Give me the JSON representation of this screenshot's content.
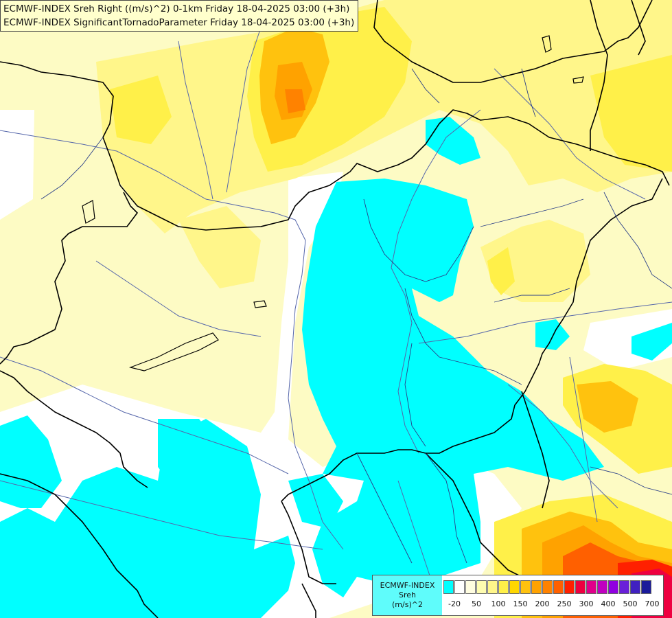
{
  "titles": [
    "ECMWF-INDEX Sreh Right ((m/s)^2) 0-1km Friday 18-04-2025 03:00 (+3h)",
    "ECMWF-INDEX SignificantTornadoParameter Friday 18-04-2025 03:00 (+3h)"
  ],
  "legend": {
    "source": "ECMWF-INDEX",
    "parameter": "Sreh",
    "unit": "(m/s)^2",
    "tick_labels": [
      "-20",
      "50",
      "100",
      "150",
      "200",
      "250",
      "300",
      "400",
      "500",
      "700"
    ],
    "colors": [
      "#00ffff",
      "#ffffff",
      "#fffde0",
      "#fefcb0",
      "#fff68a",
      "#fff049",
      "#ffd700",
      "#ffc20e",
      "#ffa200",
      "#ff8200",
      "#ff6000",
      "#ff2000",
      "#ee0040",
      "#e0008a",
      "#c000c0",
      "#9000e0",
      "#6a1fd9",
      "#4020c0",
      "#1a1a9a"
    ]
  },
  "colors": {
    "background": "#fdfbc4",
    "cyan": "#00ffff",
    "border": "#000000",
    "river": "#5566aa"
  }
}
